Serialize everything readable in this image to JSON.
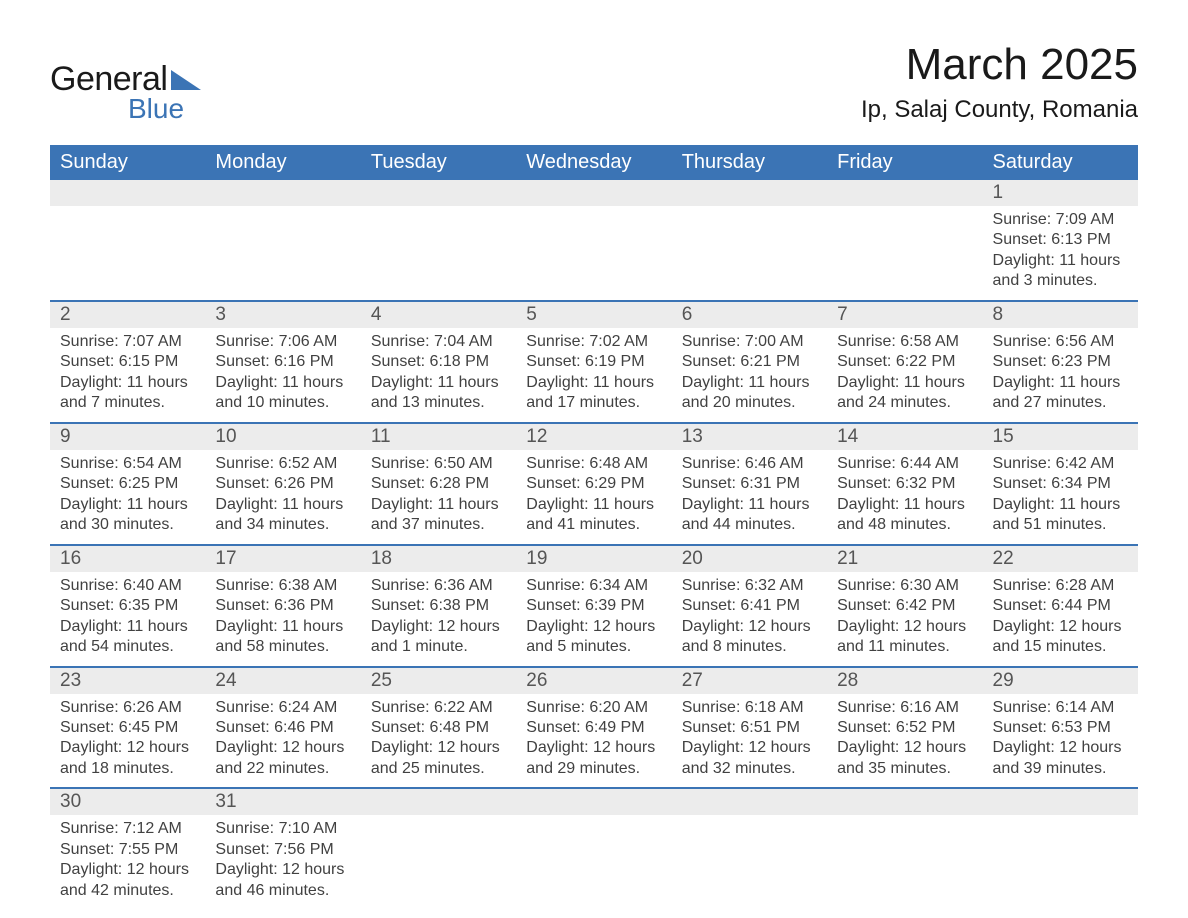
{
  "logo": {
    "text1": "General",
    "text2": "Blue",
    "triangle_color": "#3b74b5"
  },
  "title": "March 2025",
  "location": "Ip, Salaj County, Romania",
  "colors": {
    "header_bg": "#3b74b5",
    "header_text": "#ffffff",
    "daynum_bg": "#ececec",
    "row_divider": "#3b74b5",
    "body_text": "#414141",
    "daynum_text": "#555555",
    "page_bg": "#ffffff"
  },
  "typography": {
    "title_fontsize": 44,
    "location_fontsize": 24,
    "header_fontsize": 20,
    "daynum_fontsize": 19,
    "detail_fontsize": 16
  },
  "day_headers": [
    "Sunday",
    "Monday",
    "Tuesday",
    "Wednesday",
    "Thursday",
    "Friday",
    "Saturday"
  ],
  "weeks": [
    [
      null,
      null,
      null,
      null,
      null,
      null,
      {
        "n": "1",
        "sr": "Sunrise: 7:09 AM",
        "ss": "Sunset: 6:13 PM",
        "d1": "Daylight: 11 hours",
        "d2": "and 3 minutes."
      }
    ],
    [
      {
        "n": "2",
        "sr": "Sunrise: 7:07 AM",
        "ss": "Sunset: 6:15 PM",
        "d1": "Daylight: 11 hours",
        "d2": "and 7 minutes."
      },
      {
        "n": "3",
        "sr": "Sunrise: 7:06 AM",
        "ss": "Sunset: 6:16 PM",
        "d1": "Daylight: 11 hours",
        "d2": "and 10 minutes."
      },
      {
        "n": "4",
        "sr": "Sunrise: 7:04 AM",
        "ss": "Sunset: 6:18 PM",
        "d1": "Daylight: 11 hours",
        "d2": "and 13 minutes."
      },
      {
        "n": "5",
        "sr": "Sunrise: 7:02 AM",
        "ss": "Sunset: 6:19 PM",
        "d1": "Daylight: 11 hours",
        "d2": "and 17 minutes."
      },
      {
        "n": "6",
        "sr": "Sunrise: 7:00 AM",
        "ss": "Sunset: 6:21 PM",
        "d1": "Daylight: 11 hours",
        "d2": "and 20 minutes."
      },
      {
        "n": "7",
        "sr": "Sunrise: 6:58 AM",
        "ss": "Sunset: 6:22 PM",
        "d1": "Daylight: 11 hours",
        "d2": "and 24 minutes."
      },
      {
        "n": "8",
        "sr": "Sunrise: 6:56 AM",
        "ss": "Sunset: 6:23 PM",
        "d1": "Daylight: 11 hours",
        "d2": "and 27 minutes."
      }
    ],
    [
      {
        "n": "9",
        "sr": "Sunrise: 6:54 AM",
        "ss": "Sunset: 6:25 PM",
        "d1": "Daylight: 11 hours",
        "d2": "and 30 minutes."
      },
      {
        "n": "10",
        "sr": "Sunrise: 6:52 AM",
        "ss": "Sunset: 6:26 PM",
        "d1": "Daylight: 11 hours",
        "d2": "and 34 minutes."
      },
      {
        "n": "11",
        "sr": "Sunrise: 6:50 AM",
        "ss": "Sunset: 6:28 PM",
        "d1": "Daylight: 11 hours",
        "d2": "and 37 minutes."
      },
      {
        "n": "12",
        "sr": "Sunrise: 6:48 AM",
        "ss": "Sunset: 6:29 PM",
        "d1": "Daylight: 11 hours",
        "d2": "and 41 minutes."
      },
      {
        "n": "13",
        "sr": "Sunrise: 6:46 AM",
        "ss": "Sunset: 6:31 PM",
        "d1": "Daylight: 11 hours",
        "d2": "and 44 minutes."
      },
      {
        "n": "14",
        "sr": "Sunrise: 6:44 AM",
        "ss": "Sunset: 6:32 PM",
        "d1": "Daylight: 11 hours",
        "d2": "and 48 minutes."
      },
      {
        "n": "15",
        "sr": "Sunrise: 6:42 AM",
        "ss": "Sunset: 6:34 PM",
        "d1": "Daylight: 11 hours",
        "d2": "and 51 minutes."
      }
    ],
    [
      {
        "n": "16",
        "sr": "Sunrise: 6:40 AM",
        "ss": "Sunset: 6:35 PM",
        "d1": "Daylight: 11 hours",
        "d2": "and 54 minutes."
      },
      {
        "n": "17",
        "sr": "Sunrise: 6:38 AM",
        "ss": "Sunset: 6:36 PM",
        "d1": "Daylight: 11 hours",
        "d2": "and 58 minutes."
      },
      {
        "n": "18",
        "sr": "Sunrise: 6:36 AM",
        "ss": "Sunset: 6:38 PM",
        "d1": "Daylight: 12 hours",
        "d2": "and 1 minute."
      },
      {
        "n": "19",
        "sr": "Sunrise: 6:34 AM",
        "ss": "Sunset: 6:39 PM",
        "d1": "Daylight: 12 hours",
        "d2": "and 5 minutes."
      },
      {
        "n": "20",
        "sr": "Sunrise: 6:32 AM",
        "ss": "Sunset: 6:41 PM",
        "d1": "Daylight: 12 hours",
        "d2": "and 8 minutes."
      },
      {
        "n": "21",
        "sr": "Sunrise: 6:30 AM",
        "ss": "Sunset: 6:42 PM",
        "d1": "Daylight: 12 hours",
        "d2": "and 11 minutes."
      },
      {
        "n": "22",
        "sr": "Sunrise: 6:28 AM",
        "ss": "Sunset: 6:44 PM",
        "d1": "Daylight: 12 hours",
        "d2": "and 15 minutes."
      }
    ],
    [
      {
        "n": "23",
        "sr": "Sunrise: 6:26 AM",
        "ss": "Sunset: 6:45 PM",
        "d1": "Daylight: 12 hours",
        "d2": "and 18 minutes."
      },
      {
        "n": "24",
        "sr": "Sunrise: 6:24 AM",
        "ss": "Sunset: 6:46 PM",
        "d1": "Daylight: 12 hours",
        "d2": "and 22 minutes."
      },
      {
        "n": "25",
        "sr": "Sunrise: 6:22 AM",
        "ss": "Sunset: 6:48 PM",
        "d1": "Daylight: 12 hours",
        "d2": "and 25 minutes."
      },
      {
        "n": "26",
        "sr": "Sunrise: 6:20 AM",
        "ss": "Sunset: 6:49 PM",
        "d1": "Daylight: 12 hours",
        "d2": "and 29 minutes."
      },
      {
        "n": "27",
        "sr": "Sunrise: 6:18 AM",
        "ss": "Sunset: 6:51 PM",
        "d1": "Daylight: 12 hours",
        "d2": "and 32 minutes."
      },
      {
        "n": "28",
        "sr": "Sunrise: 6:16 AM",
        "ss": "Sunset: 6:52 PM",
        "d1": "Daylight: 12 hours",
        "d2": "and 35 minutes."
      },
      {
        "n": "29",
        "sr": "Sunrise: 6:14 AM",
        "ss": "Sunset: 6:53 PM",
        "d1": "Daylight: 12 hours",
        "d2": "and 39 minutes."
      }
    ],
    [
      {
        "n": "30",
        "sr": "Sunrise: 7:12 AM",
        "ss": "Sunset: 7:55 PM",
        "d1": "Daylight: 12 hours",
        "d2": "and 42 minutes."
      },
      {
        "n": "31",
        "sr": "Sunrise: 7:10 AM",
        "ss": "Sunset: 7:56 PM",
        "d1": "Daylight: 12 hours",
        "d2": "and 46 minutes."
      },
      null,
      null,
      null,
      null,
      null
    ]
  ]
}
